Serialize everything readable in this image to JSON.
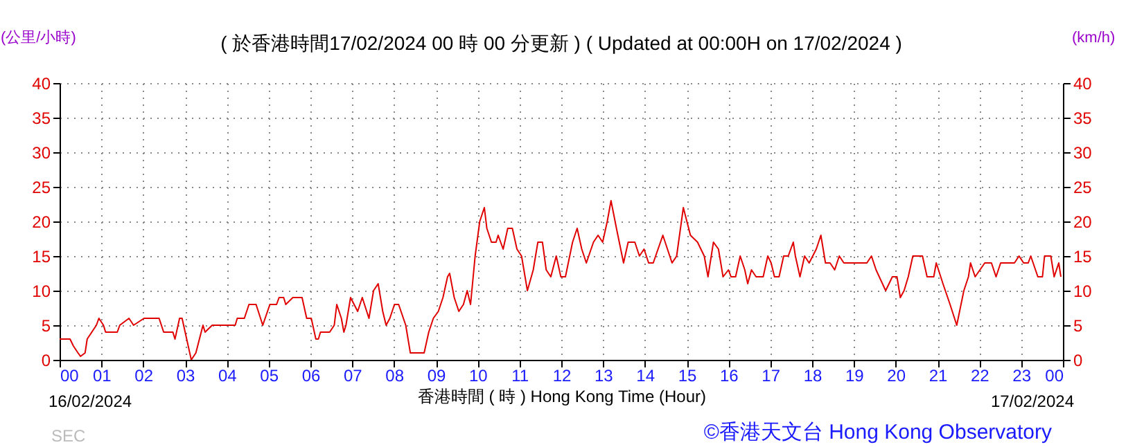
{
  "chart_data": {
    "type": "line",
    "title": "( 於香港時間17/02/2024 00 時 00 分更新 ) ( Updated at 00:00H on 17/02/2024 )",
    "xlabel": "香港時間 ( 時 ) Hong Kong Time (Hour)",
    "ylabel": "(公里/小時)",
    "y2label": "(km/h)",
    "annotations": [
      "16/02/2024",
      "17/02/2024",
      "SEC",
      "©香港天文台 Hong Kong Observatory"
    ],
    "x": [
      0,
      0.25,
      0.33,
      0.44,
      0.5,
      0.61,
      0.66,
      0.77,
      0.88,
      0.94,
      1.05,
      1.1,
      1.38,
      1.44,
      1.66,
      1.77,
      2.02,
      2.38,
      2.49,
      2.71,
      2.76,
      2.87,
      2.93,
      3.04,
      3.15,
      3.26,
      3.43,
      3.48,
      3.65,
      4.2,
      4.25,
      4.42,
      4.53,
      4.7,
      4.86,
      5.03,
      5.19,
      5.25,
      5.36,
      5.41,
      5.58,
      5.8,
      5.91,
      6.02,
      6.13,
      6.19,
      6.24,
      6.46,
      6.57,
      6.63,
      6.74,
      6.8,
      6.85,
      6.96,
      7.13,
      7.24,
      7.4,
      7.51,
      7.62,
      7.73,
      7.81,
      7.9,
      8.01,
      8.11,
      8.28,
      8.39,
      8.72,
      8.83,
      8.94,
      9.06,
      9.17,
      9.28,
      9.33,
      9.44,
      9.55,
      9.66,
      9.75,
      9.83,
      9.94,
      10.05,
      10.16,
      10.22,
      10.33,
      10.44,
      10.49,
      10.61,
      10.72,
      10.83,
      10.94,
      11.05,
      11.19,
      11.33,
      11.44,
      11.55,
      11.64,
      11.75,
      11.88,
      11.99,
      12.1,
      12.27,
      12.38,
      12.49,
      12.6,
      12.77,
      12.88,
      12.99,
      13.1,
      13.19,
      13.32,
      13.49,
      13.6,
      13.76,
      13.87,
      13.98,
      14.09,
      14.2,
      14.43,
      14.54,
      14.65,
      14.76,
      14.92,
      15.09,
      15.26,
      15.42,
      15.51,
      15.64,
      15.76,
      15.87,
      16.0,
      16.06,
      16.17,
      16.28,
      16.39,
      16.46,
      16.55,
      16.66,
      16.83,
      16.94,
      17.02,
      17.1,
      17.21,
      17.32,
      17.43,
      17.55,
      17.6,
      17.71,
      17.82,
      17.93,
      18.1,
      18.21,
      18.32,
      18.43,
      18.54,
      18.65,
      18.76,
      18.98,
      19.31,
      19.42,
      19.53,
      19.76,
      19.92,
      20.03,
      20.11,
      20.2,
      20.3,
      20.41,
      20.64,
      20.75,
      20.91,
      20.97,
      21.13,
      21.3,
      21.46,
      21.63,
      21.74,
      21.79,
      21.9,
      22.13,
      22.29,
      22.4,
      22.51,
      22.68,
      22.84,
      22.95,
      23.06,
      23.17,
      23.23,
      23.4,
      23.51,
      23.56,
      23.71,
      23.79,
      23.9,
      23.95
    ],
    "series": [
      {
        "color": "#e00000",
        "values": [
          3,
          3,
          2,
          1,
          0.5,
          1,
          3,
          4,
          5,
          6,
          5,
          4,
          4,
          5,
          6,
          5,
          6,
          6,
          4,
          4,
          3,
          6,
          6,
          3,
          0,
          1,
          5,
          4,
          5,
          5,
          6,
          6,
          8,
          8,
          5,
          8,
          8,
          9,
          9,
          8,
          9,
          9,
          6,
          6,
          3,
          3,
          4,
          4,
          5,
          8,
          6,
          4,
          5,
          9,
          7,
          9,
          6,
          10,
          11,
          7,
          5,
          6,
          8,
          8,
          5,
          1,
          1,
          4,
          6,
          7,
          9,
          12,
          12.5,
          9,
          7,
          8,
          10,
          8,
          15,
          20,
          22,
          19,
          17,
          17,
          18,
          16,
          19,
          19,
          16,
          15,
          10,
          13,
          17,
          17,
          13,
          12,
          15,
          12,
          12,
          17,
          19,
          16,
          14,
          17,
          18,
          17,
          20,
          23,
          19,
          14,
          17,
          17,
          15,
          16,
          14,
          14,
          18,
          16,
          14,
          15,
          22,
          18,
          17,
          15,
          12,
          17,
          16,
          12,
          13,
          12,
          12,
          15,
          13,
          11,
          13,
          12,
          12,
          15,
          14,
          12,
          12,
          15,
          15,
          17,
          15,
          12,
          15,
          14,
          16,
          18,
          14,
          14,
          13,
          15,
          14,
          14,
          14,
          15,
          13,
          10,
          12,
          12,
          9,
          10,
          12,
          15,
          15,
          12,
          12,
          14,
          11,
          8,
          5,
          10,
          12,
          14,
          12,
          14,
          14,
          12,
          14,
          14,
          14,
          15,
          14,
          14,
          15,
          12,
          12,
          15,
          15,
          12,
          14,
          12
        ]
      }
    ],
    "xlim": [
      0,
      24
    ],
    "xticks": [
      {
        "value": 0,
        "label": "00"
      },
      {
        "value": 1,
        "label": "01"
      },
      {
        "value": 2,
        "label": "02"
      },
      {
        "value": 3,
        "label": "03"
      },
      {
        "value": 4,
        "label": "04"
      },
      {
        "value": 5,
        "label": "05"
      },
      {
        "value": 6,
        "label": "06"
      },
      {
        "value": 7,
        "label": "07"
      },
      {
        "value": 8,
        "label": "08"
      },
      {
        "value": 9,
        "label": "09"
      },
      {
        "value": 10,
        "label": "10"
      },
      {
        "value": 11,
        "label": "11"
      },
      {
        "value": 12,
        "label": "12"
      },
      {
        "value": 13,
        "label": "13"
      },
      {
        "value": 14,
        "label": "14"
      },
      {
        "value": 15,
        "label": "15"
      },
      {
        "value": 16,
        "label": "16"
      },
      {
        "value": 17,
        "label": "17"
      },
      {
        "value": 18,
        "label": "18"
      },
      {
        "value": 19,
        "label": "19"
      },
      {
        "value": 20,
        "label": "20"
      },
      {
        "value": 21,
        "label": "21"
      },
      {
        "value": 22,
        "label": "22"
      },
      {
        "value": 23,
        "label": "23"
      },
      {
        "value": 24,
        "label": "00"
      }
    ],
    "ylim": [
      0,
      40
    ],
    "yticks": [
      0,
      5,
      10,
      15,
      20,
      25,
      30,
      35,
      40
    ],
    "y2lim": [
      0,
      40
    ],
    "y2ticks": [
      0,
      5,
      10,
      15,
      20,
      25,
      30,
      35,
      40
    ],
    "grid": true,
    "marker": "none",
    "line_style": "solid"
  }
}
